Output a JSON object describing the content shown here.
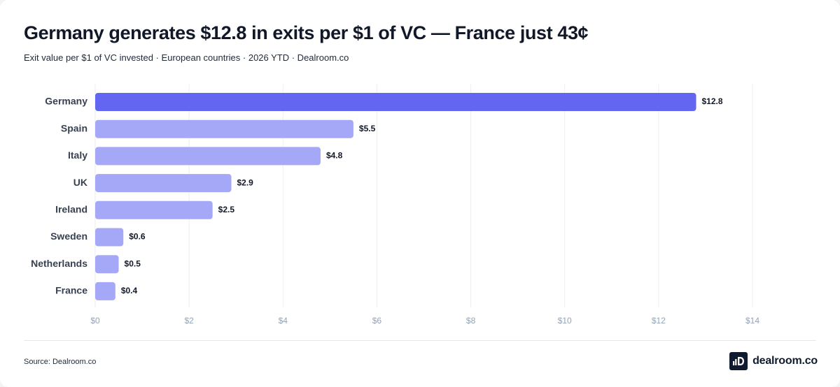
{
  "chart_data": {
    "type": "bar",
    "orientation": "horizontal",
    "title": "Germany generates $12.8 in exits per $1 of VC — France just 43¢",
    "subtitle": "Exit value per $1 of VC invested · European countries · 2026 YTD · Dealroom.co",
    "categories": [
      "Germany",
      "Spain",
      "Italy",
      "UK",
      "Ireland",
      "Sweden",
      "Netherlands",
      "France"
    ],
    "values": [
      12.8,
      5.5,
      4.8,
      2.9,
      2.5,
      0.6,
      0.5,
      0.43
    ],
    "value_labels": [
      "$12.8",
      "$5.5",
      "$4.8",
      "$2.9",
      "$2.5",
      "$0.6",
      "$0.5",
      "$0.4"
    ],
    "xlim": [
      0,
      14
    ],
    "xticks": [
      0,
      2,
      4,
      6,
      8,
      10,
      12,
      14
    ],
    "xtick_labels": [
      "$0",
      "$2",
      "$4",
      "$6",
      "$8",
      "$10",
      "$12",
      "$14"
    ],
    "xlabel": "",
    "ylabel": "",
    "grid": "vertical",
    "legend": "none",
    "colors": {
      "highlight": "#6366f1",
      "default": "#a5a8f6"
    },
    "highlight_category": "Germany"
  },
  "footer": {
    "source": "Source: Dealroom.co",
    "brand_name": "dealroom.co",
    "brand_icon": "dealroom-logo-icon"
  }
}
